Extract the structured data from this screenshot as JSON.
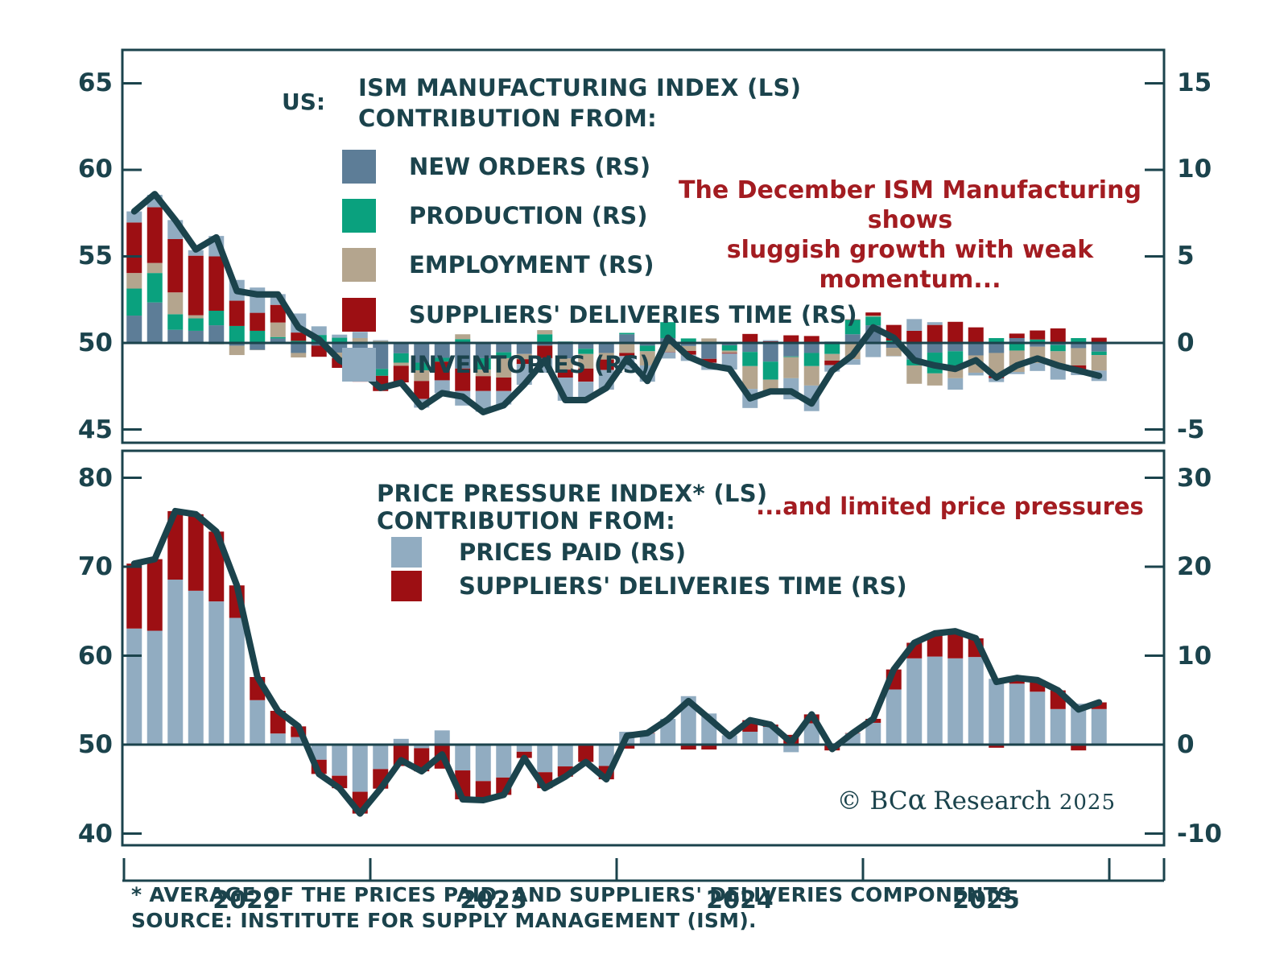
{
  "colors": {
    "teal": "#1b434c",
    "line": "#1b434c",
    "annotation_red": "#a31c21",
    "new_orders": "#5d7d97",
    "production": "#0aa17e",
    "employment": "#b4a58e",
    "suppliers_deliveries": "#9d0f13",
    "inventories": "#91acc1",
    "prices_paid": "#91acc1",
    "background": "#ffffff"
  },
  "top_panel": {
    "region_label": "US:",
    "title_lines": [
      "ISM MANUFACTURING INDEX (LS)",
      "CONTRIBUTION FROM:"
    ],
    "annotation_lines": [
      "The December ISM Manufacturing shows",
      "sluggish growth with weak momentum..."
    ]
  },
  "bottom_panel": {
    "title_lines": [
      "PRICE PRESSURE INDEX* (LS)",
      "CONTRIBUTION FROM:"
    ],
    "annotation": "...and limited price pressures"
  },
  "x_axis": {
    "year_labels": [
      "2022",
      "2023",
      "2024",
      "2025"
    ]
  },
  "footnotes": [
    "* AVERAGE OF THE PRICES PAID, AND SUPPLIERS' DELIVERIES COMPONENTS.",
    "SOURCE: INSTITUTE FOR SUPPLY MANAGEMENT (ISM)."
  ],
  "copyright": {
    "prefix": "© BC",
    "alpha": "α",
    "suffix": "Research",
    "year": "2025"
  },
  "chart_data": [
    {
      "type": "bar",
      "subtype": "stacked-bars-with-line",
      "panel": "ism_manufacturing",
      "title": "US: ISM MANUFACTURING INDEX (LS), CONTRIBUTION FROM: (RS)",
      "legend_position": "top-left-inside",
      "grid": false,
      "x": [
        "2022-01",
        "2022-02",
        "2022-03",
        "2022-04",
        "2022-05",
        "2022-06",
        "2022-07",
        "2022-08",
        "2022-09",
        "2022-10",
        "2022-11",
        "2022-12",
        "2023-01",
        "2023-02",
        "2023-03",
        "2023-04",
        "2023-05",
        "2023-06",
        "2023-07",
        "2023-08",
        "2023-09",
        "2023-10",
        "2023-11",
        "2023-12",
        "2024-01",
        "2024-02",
        "2024-03",
        "2024-04",
        "2024-05",
        "2024-06",
        "2024-07",
        "2024-08",
        "2024-09",
        "2024-10",
        "2024-11",
        "2024-12",
        "2025-01",
        "2025-02",
        "2025-03",
        "2025-04",
        "2025-05",
        "2025-06",
        "2025-07",
        "2025-08",
        "2025-09",
        "2025-10",
        "2025-11",
        "2025-12"
      ],
      "line": {
        "name": "ISM MANUFACTURING INDEX (LS)",
        "values": [
          57.6,
          58.6,
          57.1,
          55.4,
          56.1,
          53.0,
          52.8,
          52.8,
          50.9,
          50.2,
          49.0,
          48.4,
          47.4,
          47.7,
          46.3,
          47.1,
          46.9,
          46.0,
          46.4,
          47.6,
          49.0,
          46.7,
          46.7,
          47.4,
          49.1,
          47.8,
          50.3,
          49.2,
          48.7,
          48.5,
          46.8,
          47.2,
          47.2,
          46.5,
          48.4,
          49.3,
          50.9,
          50.3,
          49.0,
          48.7,
          48.5,
          49.0,
          48.0,
          48.7,
          49.1,
          48.7,
          48.4,
          48.1
        ]
      },
      "series": [
        {
          "name": "NEW ORDERS (RS)",
          "color_key": "new_orders",
          "values": [
            1.58,
            2.34,
            0.76,
            0.7,
            1.02,
            -0.16,
            -0.4,
            0.26,
            -0.58,
            -0.16,
            -0.56,
            -0.96,
            -1.5,
            -0.6,
            -1.14,
            -0.86,
            -1.48,
            -0.88,
            -0.54,
            -0.64,
            -0.16,
            -0.9,
            -0.34,
            -0.58,
            0.5,
            -0.16,
            0.28,
            -0.18,
            -0.92,
            -0.14,
            -0.52,
            -1.08,
            -0.78,
            -0.58,
            0.08,
            0.5,
            1.02,
            -0.28,
            -0.96,
            -0.56,
            -0.48,
            -0.72,
            -0.58,
            0.28,
            -0.22,
            -0.12,
            -0.3,
            -0.5
          ]
        },
        {
          "name": "PRODUCTION (RS)",
          "color_key": "production",
          "values": [
            1.56,
            1.7,
            0.9,
            0.72,
            0.84,
            0.98,
            0.7,
            0.08,
            0.12,
            0.46,
            0.3,
            -0.3,
            -0.4,
            -0.54,
            -0.44,
            -0.22,
            0.22,
            -0.66,
            -0.34,
            0.0,
            0.5,
            0.08,
            -0.3,
            0.06,
            0.08,
            -0.32,
            0.92,
            0.26,
            0.04,
            -0.3,
            -0.82,
            -1.04,
            -0.04,
            -0.76,
            -0.64,
            0.84,
            0.5,
            0.14,
            -0.34,
            -1.2,
            -0.92,
            0.06,
            0.28,
            -0.44,
            0.2,
            -0.36,
            0.28,
            -0.2
          ]
        },
        {
          "name": "EMPLOYMENT (RS)",
          "color_key": "employment",
          "values": [
            0.9,
            0.58,
            1.26,
            0.18,
            -0.08,
            -0.54,
            -0.02,
            0.84,
            -0.26,
            0.0,
            -0.32,
            0.28,
            0.12,
            -0.18,
            -0.62,
            0.04,
            0.28,
            -0.38,
            -1.12,
            -0.3,
            0.24,
            -0.64,
            -0.84,
            -0.38,
            -0.58,
            -0.82,
            -0.52,
            -0.28,
            0.22,
            -0.14,
            -1.32,
            -0.8,
            -1.22,
            -1.12,
            -0.38,
            -0.94,
            0.06,
            -0.48,
            -1.06,
            -0.7,
            -0.64,
            -1.0,
            -1.32,
            -1.24,
            -0.94,
            -0.8,
            -1.0,
            -0.9
          ]
        },
        {
          "name": "SUPPLIERS' DELIVERIES TIME (RS)",
          "color_key": "suppliers_deliveries",
          "values": [
            2.92,
            3.22,
            3.08,
            3.44,
            3.14,
            1.46,
            1.04,
            1.02,
            0.48,
            -0.64,
            -0.56,
            -0.98,
            -0.88,
            -0.96,
            -1.04,
            -1.08,
            -1.3,
            -0.86,
            -0.78,
            -0.28,
            -0.72,
            -0.46,
            -0.76,
            -0.6,
            -0.18,
            0.02,
            -0.02,
            -0.22,
            -0.22,
            -0.04,
            0.52,
            0.1,
            0.44,
            0.4,
            -0.26,
            0.02,
            0.18,
            0.9,
            0.7,
            1.04,
            1.22,
            0.84,
            -0.14,
            0.26,
            0.52,
            0.84,
            -0.26,
            0.3
          ]
        },
        {
          "name": "INVENTORIES (RS)",
          "color_key": "inventories",
          "values": [
            0.64,
            0.72,
            1.1,
            0.32,
            1.18,
            1.2,
            1.46,
            0.62,
            1.1,
            0.5,
            0.18,
            0.36,
            0.04,
            0.02,
            -0.5,
            -0.74,
            -0.84,
            -1.2,
            -0.78,
            -1.2,
            -0.84,
            -1.34,
            -1.04,
            -1.14,
            -0.76,
            -0.94,
            -0.36,
            -0.36,
            -0.42,
            -0.92,
            -1.1,
            0.06,
            -1.22,
            -1.48,
            -0.38,
            -0.32,
            -0.82,
            -0.02,
            0.68,
            0.16,
            -0.66,
            -0.16,
            -0.22,
            -0.12,
            -0.46,
            -0.84,
            -0.3,
            -0.6
          ]
        }
      ],
      "left_axis": {
        "ticks": [
          65,
          60,
          55,
          50,
          45
        ],
        "tick_labels": [
          "65",
          "60",
          "55",
          "50",
          "45"
        ],
        "note": "LS = index level"
      },
      "right_axis": {
        "ticks": [
          15,
          10,
          5,
          0,
          -5
        ],
        "tick_labels": [
          "15",
          "10",
          "5",
          "0",
          "-5"
        ],
        "note": "RS = contribution in index points; right 0 aligns with left 50"
      }
    },
    {
      "type": "bar",
      "subtype": "stacked-bars-with-line",
      "panel": "price_pressure",
      "title": "PRICE PRESSURE INDEX* (LS), CONTRIBUTION FROM: (RS)",
      "legend_position": "top-center-inside",
      "grid": false,
      "x": [
        "2022-01",
        "2022-02",
        "2022-03",
        "2022-04",
        "2022-05",
        "2022-06",
        "2022-07",
        "2022-08",
        "2022-09",
        "2022-10",
        "2022-11",
        "2022-12",
        "2023-01",
        "2023-02",
        "2023-03",
        "2023-04",
        "2023-05",
        "2023-06",
        "2023-07",
        "2023-08",
        "2023-09",
        "2023-10",
        "2023-11",
        "2023-12",
        "2024-01",
        "2024-02",
        "2024-03",
        "2024-04",
        "2024-05",
        "2024-06",
        "2024-07",
        "2024-08",
        "2024-09",
        "2024-10",
        "2024-11",
        "2024-12",
        "2025-01",
        "2025-02",
        "2025-03",
        "2025-04",
        "2025-05",
        "2025-06",
        "2025-07",
        "2025-08",
        "2025-09",
        "2025-10",
        "2025-11",
        "2025-12"
      ],
      "line": {
        "name": "PRICE PRESSURE INDEX* (LS)",
        "values": [
          70.35,
          70.85,
          76.25,
          75.9,
          73.95,
          67.9,
          57.6,
          53.8,
          52.05,
          46.7,
          45.1,
          42.25,
          45.05,
          48.25,
          47.0,
          48.9,
          43.85,
          43.75,
          44.35,
          48.5,
          45.1,
          46.4,
          48.05,
          46.1,
          51.0,
          51.3,
          52.85,
          54.9,
          52.95,
          50.95,
          52.75,
          52.25,
          50.25,
          53.4,
          49.5,
          51.3,
          52.9,
          58.45,
          61.45,
          62.5,
          62.75,
          61.95,
          57.05,
          57.5,
          57.25,
          56.1,
          53.95,
          54.75
        ]
      },
      "series": [
        {
          "name": "PRICES PAID (RS)",
          "color_key": "prices_paid",
          "values": [
            13.05,
            12.8,
            18.55,
            17.3,
            16.1,
            14.25,
            5.0,
            1.25,
            0.85,
            -1.7,
            -3.5,
            -5.3,
            -2.75,
            0.65,
            -0.4,
            1.6,
            -2.9,
            -4.1,
            -3.7,
            -0.8,
            -3.1,
            -2.45,
            -0.05,
            -2.4,
            1.45,
            1.25,
            2.9,
            5.45,
            3.5,
            1.05,
            1.45,
            2.0,
            -0.85,
            2.4,
            0.15,
            1.25,
            2.45,
            6.2,
            9.7,
            9.9,
            9.7,
            9.85,
            7.4,
            6.85,
            5.95,
            4.0,
            4.6,
            4.0
          ]
        },
        {
          "name": "SUPPLIERS' DELIVERIES TIME (RS)",
          "color_key": "suppliers_deliveries",
          "values": [
            7.3,
            8.05,
            7.7,
            8.6,
            7.85,
            3.65,
            2.6,
            2.55,
            1.2,
            -1.6,
            -1.4,
            -2.45,
            -2.2,
            -2.4,
            -2.6,
            -2.7,
            -3.25,
            -2.15,
            -1.95,
            -0.7,
            -1.8,
            -1.15,
            -1.9,
            -1.5,
            -0.45,
            0.05,
            -0.05,
            -0.55,
            -0.55,
            -0.1,
            1.3,
            0.25,
            1.1,
            1.0,
            -0.65,
            0.05,
            0.45,
            2.25,
            1.75,
            2.6,
            3.05,
            2.1,
            -0.35,
            0.65,
            1.3,
            2.1,
            -0.65,
            0.75
          ]
        }
      ],
      "left_axis": {
        "ticks": [
          80,
          70,
          60,
          50,
          40
        ],
        "tick_labels": [
          "80",
          "70",
          "60",
          "50",
          "40"
        ],
        "note": "LS = index level"
      },
      "right_axis": {
        "ticks": [
          30,
          20,
          10,
          0,
          -10
        ],
        "tick_labels": [
          "30",
          "20",
          "10",
          "0",
          "-10"
        ],
        "note": "RS = contribution in index points; right 0 aligns with left 50"
      }
    }
  ]
}
